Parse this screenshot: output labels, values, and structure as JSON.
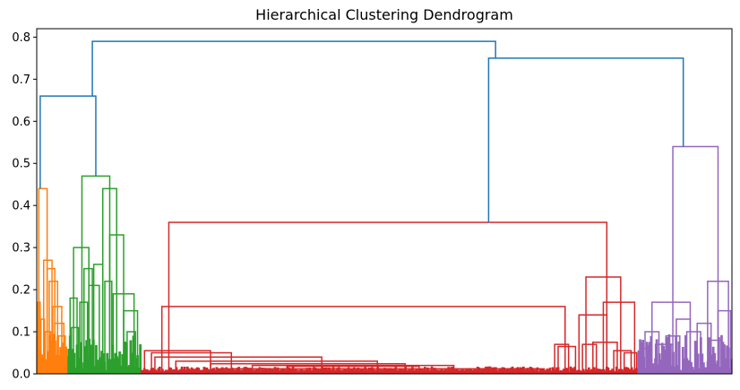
{
  "chart_data": {
    "type": "dendrogram",
    "title": "Hierarchical Clustering Dendrogram",
    "xlabel": "",
    "ylabel": "",
    "ylim": [
      0,
      0.82
    ],
    "yticks": [
      "0.0",
      "0.1",
      "0.2",
      "0.3",
      "0.4",
      "0.5",
      "0.6",
      "0.7",
      "0.8"
    ],
    "x_tick_labels_visible": false,
    "above_threshold_color": "#1f77b4",
    "leaf_count_axis_units": 100,
    "top_links": [
      {
        "name": "root",
        "left": 8.0,
        "right": 66.0,
        "height": 0.79,
        "left_child_height": 0.66,
        "right_child_height": 0.75
      },
      {
        "name": "left-group",
        "left": 0.5,
        "right": 8.5,
        "height": 0.66,
        "left_child_height": 0.44,
        "right_child_height": 0.47
      },
      {
        "name": "right-group",
        "left": 65.0,
        "right": 93.0,
        "height": 0.75,
        "left_child_height": 0.36,
        "right_child_height": 0.54
      }
    ],
    "clusters": [
      {
        "name": "cluster-orange",
        "color": "#ff7f0e",
        "x_range": [
          0,
          4.5
        ],
        "links": [
          {
            "left": 0.3,
            "right": 1.5,
            "height": 0.44
          },
          {
            "left": 0.1,
            "right": 0.5,
            "height": 0.17
          },
          {
            "left": 1.0,
            "right": 2.2,
            "height": 0.27
          },
          {
            "left": 1.5,
            "right": 2.6,
            "height": 0.25
          },
          {
            "left": 1.8,
            "right": 3.0,
            "height": 0.22
          },
          {
            "left": 2.3,
            "right": 3.6,
            "height": 0.16
          },
          {
            "left": 2.6,
            "right": 3.9,
            "height": 0.12
          },
          {
            "left": 3.0,
            "right": 4.1,
            "height": 0.09
          },
          {
            "left": 1.2,
            "right": 2.0,
            "height": 0.1
          },
          {
            "left": 0.6,
            "right": 1.1,
            "height": 0.13
          }
        ]
      },
      {
        "name": "cluster-green",
        "color": "#2ca02c",
        "x_range": [
          4.5,
          15.0
        ],
        "links": [
          {
            "left": 6.5,
            "right": 10.5,
            "height": 0.47
          },
          {
            "left": 5.3,
            "right": 7.5,
            "height": 0.3
          },
          {
            "left": 9.5,
            "right": 11.5,
            "height": 0.44
          },
          {
            "left": 10.5,
            "right": 12.5,
            "height": 0.33
          },
          {
            "left": 4.8,
            "right": 5.8,
            "height": 0.18
          },
          {
            "left": 6.8,
            "right": 8.0,
            "height": 0.25
          },
          {
            "left": 11.0,
            "right": 14.0,
            "height": 0.19
          },
          {
            "left": 8.2,
            "right": 9.5,
            "height": 0.26
          },
          {
            "left": 12.5,
            "right": 14.5,
            "height": 0.15
          },
          {
            "left": 5.0,
            "right": 6.0,
            "height": 0.11
          },
          {
            "left": 6.2,
            "right": 7.3,
            "height": 0.17
          },
          {
            "left": 7.5,
            "right": 9.0,
            "height": 0.21
          },
          {
            "left": 9.8,
            "right": 10.8,
            "height": 0.22
          },
          {
            "left": 13.0,
            "right": 14.2,
            "height": 0.1
          }
        ]
      },
      {
        "name": "cluster-red",
        "color": "#d62728",
        "x_range": [
          15.0,
          86.5
        ],
        "links": [
          {
            "left": 19.0,
            "right": 82.0,
            "height": 0.36
          },
          {
            "left": 18.0,
            "right": 76.0,
            "height": 0.16
          },
          {
            "left": 79.0,
            "right": 84.0,
            "height": 0.23
          },
          {
            "left": 15.5,
            "right": 25.0,
            "height": 0.055
          },
          {
            "left": 16.5,
            "right": 28.0,
            "height": 0.05
          },
          {
            "left": 17.0,
            "right": 41.0,
            "height": 0.04
          },
          {
            "left": 20.0,
            "right": 49.0,
            "height": 0.03
          },
          {
            "left": 25.0,
            "right": 53.0,
            "height": 0.024
          },
          {
            "left": 31.0,
            "right": 60.0,
            "height": 0.02
          },
          {
            "left": 36.0,
            "right": 55.0,
            "height": 0.018
          },
          {
            "left": 26.0,
            "right": 73.0,
            "height": 0.012
          },
          {
            "left": 18.5,
            "right": 72.0,
            "height": 0.008
          },
          {
            "left": 78.0,
            "right": 82.0,
            "height": 0.14
          },
          {
            "left": 81.5,
            "right": 86.0,
            "height": 0.17
          },
          {
            "left": 78.5,
            "right": 80.5,
            "height": 0.07
          },
          {
            "left": 80.0,
            "right": 83.5,
            "height": 0.075
          },
          {
            "left": 74.5,
            "right": 76.5,
            "height": 0.07
          },
          {
            "left": 75.0,
            "right": 77.5,
            "height": 0.065
          },
          {
            "left": 83.0,
            "right": 85.5,
            "height": 0.055
          },
          {
            "left": 84.5,
            "right": 86.3,
            "height": 0.05
          }
        ]
      },
      {
        "name": "cluster-purple",
        "color": "#9467bd",
        "x_range": [
          86.5,
          100.0
        ],
        "links": [
          {
            "left": 91.5,
            "right": 98.0,
            "height": 0.54
          },
          {
            "left": 88.5,
            "right": 94.0,
            "height": 0.17
          },
          {
            "left": 96.5,
            "right": 99.5,
            "height": 0.22
          },
          {
            "left": 87.5,
            "right": 89.5,
            "height": 0.1
          },
          {
            "left": 89.0,
            "right": 91.5,
            "height": 0.07
          },
          {
            "left": 92.0,
            "right": 94.0,
            "height": 0.13
          },
          {
            "left": 95.0,
            "right": 97.0,
            "height": 0.12
          },
          {
            "left": 98.0,
            "right": 99.8,
            "height": 0.15
          },
          {
            "left": 97.0,
            "right": 98.5,
            "height": 0.08
          },
          {
            "left": 87.0,
            "right": 88.0,
            "height": 0.06
          },
          {
            "left": 90.5,
            "right": 92.5,
            "height": 0.09
          },
          {
            "left": 93.5,
            "right": 95.5,
            "height": 0.1
          }
        ]
      }
    ],
    "grid": false,
    "legend": "none"
  }
}
